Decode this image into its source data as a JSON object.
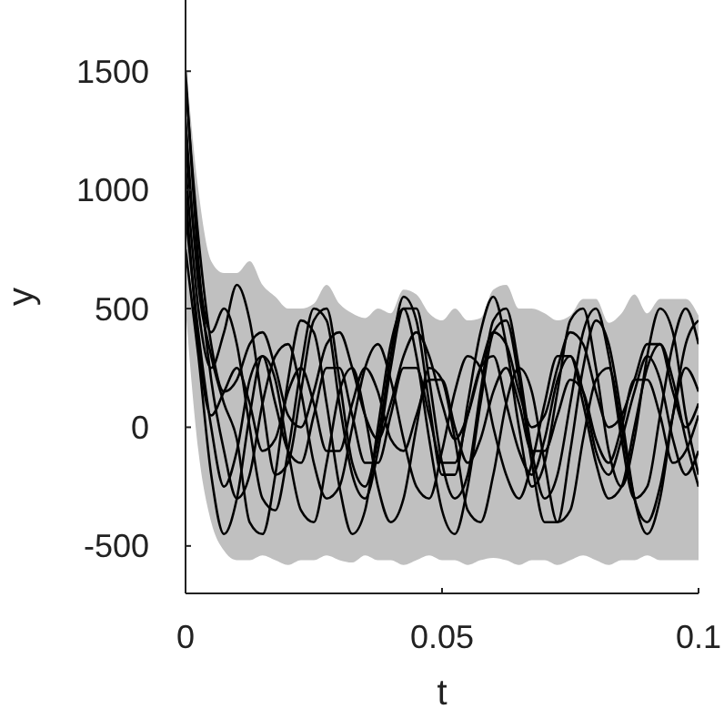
{
  "chart_data": {
    "type": "line",
    "xlabel": "t",
    "ylabel": "y",
    "xlim": [
      0,
      0.1
    ],
    "ylim": [
      -700,
      1800
    ],
    "xticks": [
      0,
      0.05,
      0.1
    ],
    "yticks": [
      -500,
      0,
      500,
      1000,
      1500
    ],
    "grid": false,
    "marker": "none",
    "line_style": "solid",
    "x": [
      0,
      0.0025,
      0.005,
      0.0075,
      0.01,
      0.0125,
      0.015,
      0.0175,
      0.02,
      0.0225,
      0.025,
      0.0275,
      0.03,
      0.0325,
      0.035,
      0.0375,
      0.04,
      0.0425,
      0.045,
      0.0475,
      0.05,
      0.0525,
      0.055,
      0.0575,
      0.06,
      0.0625,
      0.065,
      0.0675,
      0.07,
      0.0725,
      0.075,
      0.0775,
      0.08,
      0.0825,
      0.085,
      0.0875,
      0.09,
      0.0925,
      0.095,
      0.0975,
      0.1
    ],
    "series": [
      {
        "type": "line",
        "color": "#c0c0c0",
        "values": [
          null,
          null,
          null,
          null,
          null,
          null,
          null,
          null,
          null,
          null,
          null,
          null,
          null,
          null,
          null,
          null,
          null,
          null,
          null,
          null,
          null,
          null,
          null,
          null,
          null,
          null,
          null,
          null,
          null,
          null,
          null,
          null,
          null,
          null,
          null,
          null,
          null,
          null,
          null,
          null,
          null
        ],
        "upper": [
          1550,
          1000,
          700,
          650,
          650,
          700,
          600,
          550,
          500,
          500,
          520,
          600,
          520,
          480,
          460,
          500,
          480,
          580,
          560,
          480,
          450,
          500,
          450,
          460,
          580,
          600,
          500,
          500,
          480,
          450,
          470,
          540,
          540,
          440,
          480,
          560,
          480,
          540,
          540,
          540,
          470
        ],
        "lower": [
          500,
          -100,
          -400,
          -520,
          -560,
          -560,
          -540,
          -560,
          -580,
          -560,
          -560,
          -540,
          -560,
          -570,
          -540,
          -560,
          -560,
          -580,
          -560,
          -540,
          -560,
          -560,
          -580,
          -560,
          -550,
          -560,
          -580,
          -560,
          -560,
          -580,
          -560,
          -540,
          -560,
          -580,
          -560,
          -560,
          -540,
          -560,
          -560,
          -560,
          -560
        ]
      },
      {
        "color": "#000000",
        "values": [
          1500,
          700,
          200,
          -100,
          -300,
          -200,
          100,
          300,
          350,
          150,
          -150,
          -300,
          -250,
          0,
          250,
          350,
          200,
          -50,
          -250,
          -300,
          -100,
          150,
          300,
          250,
          0,
          -200,
          -300,
          -150,
          100,
          300,
          300,
          100,
          -150,
          -300,
          -250,
          0,
          250,
          350,
          200,
          -50,
          -250
        ]
      },
      {
        "color": "#000000",
        "values": [
          1300,
          600,
          300,
          100,
          -50,
          -400,
          -450,
          -200,
          200,
          450,
          400,
          100,
          -250,
          -450,
          -350,
          0,
          350,
          500,
          300,
          -50,
          -350,
          -450,
          -250,
          100,
          400,
          450,
          200,
          -150,
          -400,
          -400,
          -100,
          250,
          450,
          350,
          50,
          -300,
          -450,
          -300,
          50,
          350,
          450
        ]
      },
      {
        "color": "#000000",
        "values": [
          1100,
          500,
          250,
          400,
          600,
          450,
          100,
          -200,
          -150,
          150,
          450,
          500,
          200,
          -150,
          -250,
          -50,
          300,
          550,
          450,
          100,
          -200,
          -200,
          100,
          400,
          550,
          350,
          0,
          -250,
          -150,
          150,
          450,
          500,
          250,
          -100,
          -250,
          -50,
          300,
          500,
          400,
          50,
          -200
        ]
      },
      {
        "color": "#000000",
        "values": [
          900,
          400,
          0,
          -250,
          -100,
          200,
          300,
          100,
          -100,
          -150,
          50,
          250,
          250,
          50,
          -150,
          -150,
          50,
          250,
          250,
          50,
          -150,
          -150,
          50,
          250,
          300,
          100,
          -100,
          -200,
          -50,
          200,
          300,
          150,
          -100,
          -200,
          -50,
          150,
          300,
          200,
          -50,
          -200,
          -100
        ]
      },
      {
        "color": "#000000",
        "values": [
          1450,
          800,
          350,
          150,
          200,
          350,
          400,
          250,
          50,
          0,
          150,
          350,
          400,
          250,
          50,
          -50,
          100,
          300,
          400,
          300,
          100,
          -50,
          50,
          250,
          400,
          350,
          150,
          0,
          50,
          250,
          400,
          350,
          150,
          0,
          50,
          200,
          350,
          350,
          150,
          0,
          100
        ]
      },
      {
        "color": "#000000",
        "values": [
          750,
          300,
          -200,
          -450,
          -300,
          50,
          300,
          200,
          -100,
          -350,
          -400,
          -150,
          150,
          250,
          50,
          -250,
          -400,
          -300,
          0,
          250,
          200,
          -50,
          -350,
          -400,
          -200,
          100,
          250,
          150,
          -150,
          -400,
          -350,
          -50,
          200,
          250,
          0,
          -300,
          -400,
          -250,
          50,
          250,
          150
        ]
      },
      {
        "color": "#000000",
        "values": [
          1200,
          650,
          400,
          500,
          350,
          0,
          -300,
          -350,
          -100,
          250,
          500,
          450,
          100,
          -200,
          -300,
          -100,
          250,
          500,
          500,
          200,
          -150,
          -300,
          -200,
          150,
          450,
          500,
          250,
          -100,
          -300,
          -200,
          100,
          400,
          500,
          300,
          -50,
          -300,
          -250,
          50,
          350,
          500,
          350
        ]
      },
      {
        "color": "#000000",
        "values": [
          1000,
          350,
          50,
          150,
          250,
          100,
          -100,
          -50,
          150,
          250,
          100,
          -100,
          -100,
          100,
          250,
          150,
          -50,
          -100,
          50,
          200,
          200,
          0,
          -150,
          -50,
          150,
          250,
          100,
          -100,
          -100,
          50,
          200,
          150,
          -50,
          -150,
          0,
          200,
          200,
          50,
          -150,
          -100,
          50
        ]
      }
    ]
  }
}
